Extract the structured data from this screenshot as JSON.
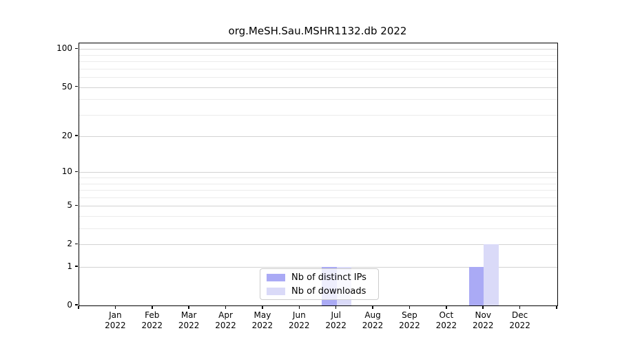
{
  "title": "org.MeSH.Sau.MSHR1132.db 2022",
  "chart_data": {
    "type": "bar",
    "title": "org.MeSH.Sau.MSHR1132.db 2022",
    "categories": [
      "Jan",
      "Feb",
      "Mar",
      "Apr",
      "May",
      "Jun",
      "Jul",
      "Aug",
      "Sep",
      "Oct",
      "Nov",
      "Dec"
    ],
    "year_label": "2022",
    "series": [
      {
        "name": "Nb of distinct IPs",
        "color": "#aaaaf5",
        "values": [
          0,
          0,
          0,
          0,
          0,
          0,
          1,
          0,
          0,
          0,
          1,
          0
        ]
      },
      {
        "name": "Nb of downloads",
        "color": "#dadaf8",
        "values": [
          0,
          0,
          0,
          0,
          0,
          0,
          1,
          0,
          0,
          0,
          2,
          0
        ]
      }
    ],
    "yscale": "log1p",
    "yticks": [
      0,
      1,
      2,
      5,
      10,
      20,
      50,
      100
    ],
    "minor_yticks": [
      3,
      4,
      6,
      7,
      8,
      9,
      30,
      40,
      60,
      70,
      80,
      90
    ],
    "ylim": [
      0,
      111
    ],
    "xlabel": "",
    "ylabel": "",
    "grid": true,
    "legend_position": "bottom-center"
  }
}
